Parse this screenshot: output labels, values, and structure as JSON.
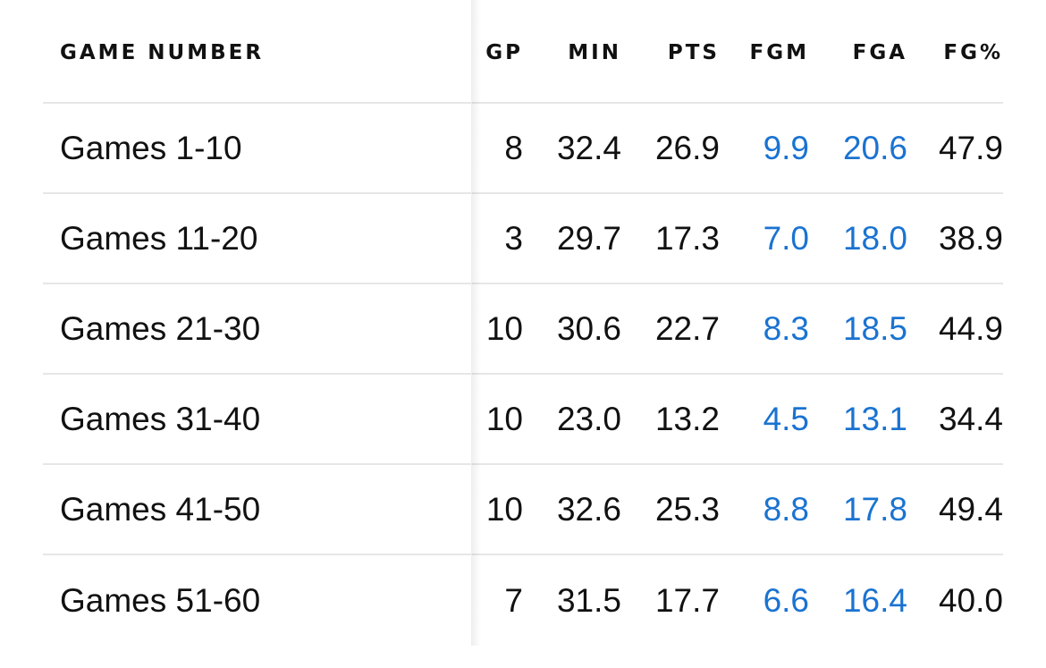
{
  "table": {
    "headers": {
      "name": "GAME NUMBER",
      "gp": "GP",
      "min": "MIN",
      "pts": "PTS",
      "fgm": "FGM",
      "fga": "FGA",
      "fgp": "FG%"
    },
    "rows": [
      {
        "name": "Games 1-10",
        "gp": "8",
        "min": "32.4",
        "pts": "26.9",
        "fgm": "9.9",
        "fga": "20.6",
        "fgp": "47.9"
      },
      {
        "name": "Games 11-20",
        "gp": "3",
        "min": "29.7",
        "pts": "17.3",
        "fgm": "7.0",
        "fga": "18.0",
        "fgp": "38.9"
      },
      {
        "name": "Games 21-30",
        "gp": "10",
        "min": "30.6",
        "pts": "22.7",
        "fgm": "8.3",
        "fga": "18.5",
        "fgp": "44.9"
      },
      {
        "name": "Games 31-40",
        "gp": "10",
        "min": "23.0",
        "pts": "13.2",
        "fgm": "4.5",
        "fga": "13.1",
        "fgp": "34.4"
      },
      {
        "name": "Games 41-50",
        "gp": "10",
        "min": "32.6",
        "pts": "25.3",
        "fgm": "8.8",
        "fga": "17.8",
        "fgp": "49.4"
      },
      {
        "name": "Games 51-60",
        "gp": "7",
        "min": "31.5",
        "pts": "17.7",
        "fgm": "6.6",
        "fga": "16.4",
        "fgp": "40.0"
      }
    ]
  },
  "colors": {
    "text": "#111111",
    "link": "#1a73d1",
    "divider": "#e6e6e6"
  }
}
